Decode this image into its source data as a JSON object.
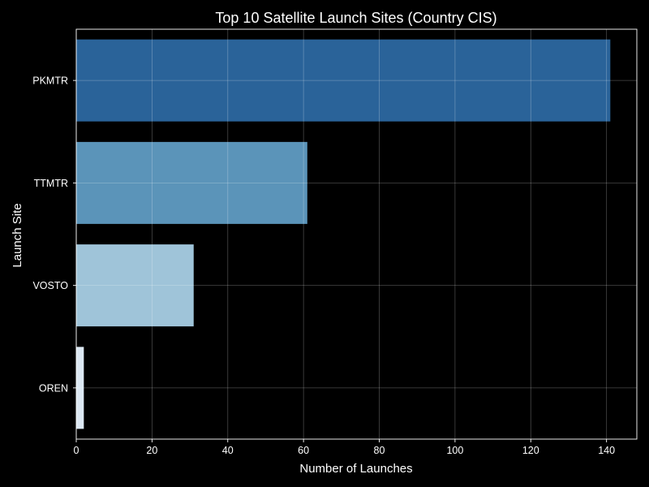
{
  "chart_data": {
    "type": "bar",
    "orientation": "horizontal",
    "title": "Top 10 Satellite Launch Sites (Country CIS)",
    "xlabel": "Number of Launches",
    "ylabel": "Launch Site",
    "categories": [
      "PKMTR",
      "TTMTR",
      "VOSTO",
      "OREN"
    ],
    "values": [
      141,
      61,
      31,
      2
    ],
    "xlim": [
      0,
      148
    ],
    "xticks": [
      0,
      20,
      40,
      60,
      80,
      100,
      120,
      140
    ],
    "grid": true,
    "colors": [
      "#2a6399",
      "#5b94b9",
      "#9fc4d9",
      "#dce8f3"
    ],
    "background": "#000000",
    "foreground": "#ffffff"
  }
}
